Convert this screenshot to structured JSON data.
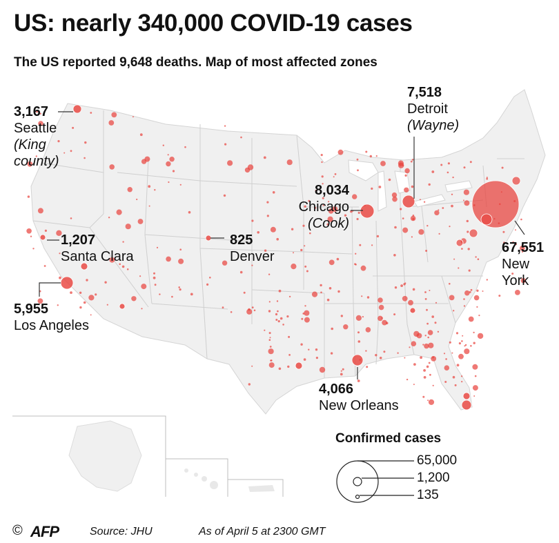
{
  "header": {
    "title": "US: nearly 340,000 COVID-19 cases",
    "subtitle": "The US reported 9,648 deaths. Map of most affected zones"
  },
  "colors": {
    "bubble": "#e8403a",
    "land": "#f0f0f0",
    "border": "#cfcfcf",
    "text": "#111111"
  },
  "callouts": {
    "seattle": {
      "value": "3,167",
      "name": "Seattle",
      "area": "(King county)",
      "area_l1": "(King",
      "area_l2": "county)"
    },
    "santa_clara": {
      "value": "1,207",
      "name": "Santa Clara"
    },
    "los_angeles": {
      "value": "5,955",
      "name": "Los Angeles"
    },
    "denver": {
      "value": "825",
      "name": "Denver"
    },
    "chicago": {
      "value": "8,034",
      "name": "Chicago",
      "area": "(Cook)"
    },
    "detroit": {
      "value": "7,518",
      "name": "Detroit",
      "area": "(Wayne)"
    },
    "new_york": {
      "value": "67,551",
      "name_l1": "New",
      "name_l2": "York"
    },
    "new_orleans": {
      "value": "4,066",
      "name": "New Orleans"
    }
  },
  "legend": {
    "title": "Confirmed cases",
    "values": [
      "65,000",
      "1,200",
      "135"
    ]
  },
  "footer": {
    "source": "Source: JHU",
    "as_of": "As of April 5 at 2300 GMT",
    "copyright": "©",
    "logo_text": "AFP"
  }
}
